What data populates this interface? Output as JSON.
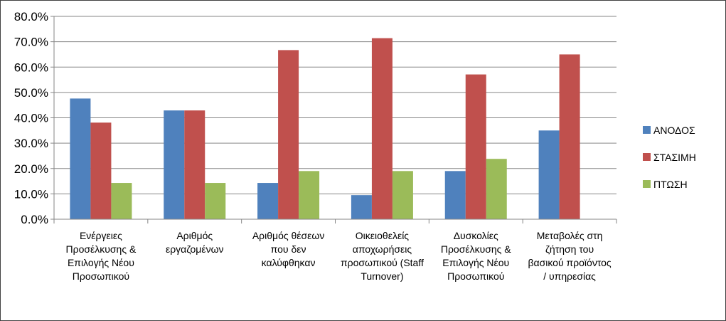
{
  "chart_data": {
    "type": "bar",
    "title": "",
    "xlabel": "",
    "ylabel": "",
    "ylim": [
      0,
      0.8
    ],
    "yticks": [
      "0.0%",
      "10.0%",
      "20.0%",
      "30.0%",
      "40.0%",
      "50.0%",
      "60.0%",
      "70.0%",
      "80.0%"
    ],
    "grid": true,
    "legend_position": "right",
    "categories": [
      [
        "Ενέργειες",
        "Προσέλκυσης &",
        "Επιλογής Νέου",
        "Προσωπικού"
      ],
      [
        "Αριθμός",
        "εργαζομένων"
      ],
      [
        "Αριθμός θέσεων",
        "που δεν",
        "καλύφθηκαν"
      ],
      [
        "Οικειοθελείς",
        "αποχωρήσεις",
        "προσωπικού (Staff",
        "Turnover)"
      ],
      [
        "Δυσκολίες",
        "Προσέλκυσης &",
        "Επιλογής Νέου",
        "Προσωπικού"
      ],
      [
        "Μεταβολές στη",
        "ζήτηση του",
        "βασικού προϊόντος",
        "/ υπηρεσίας"
      ]
    ],
    "series": [
      {
        "name": "ΑΝΟΔΟΣ",
        "color": "#4F81BD",
        "values": [
          0.476,
          0.429,
          0.143,
          0.095,
          0.19,
          0.35
        ]
      },
      {
        "name": "ΣΤΑΣΙΜΗ",
        "color": "#C0504D",
        "values": [
          0.381,
          0.429,
          0.667,
          0.714,
          0.571,
          0.65
        ]
      },
      {
        "name": "ΠΤΩΣΗ",
        "color": "#9BBB59",
        "values": [
          0.143,
          0.143,
          0.19,
          0.19,
          0.238,
          0.0
        ]
      }
    ]
  }
}
